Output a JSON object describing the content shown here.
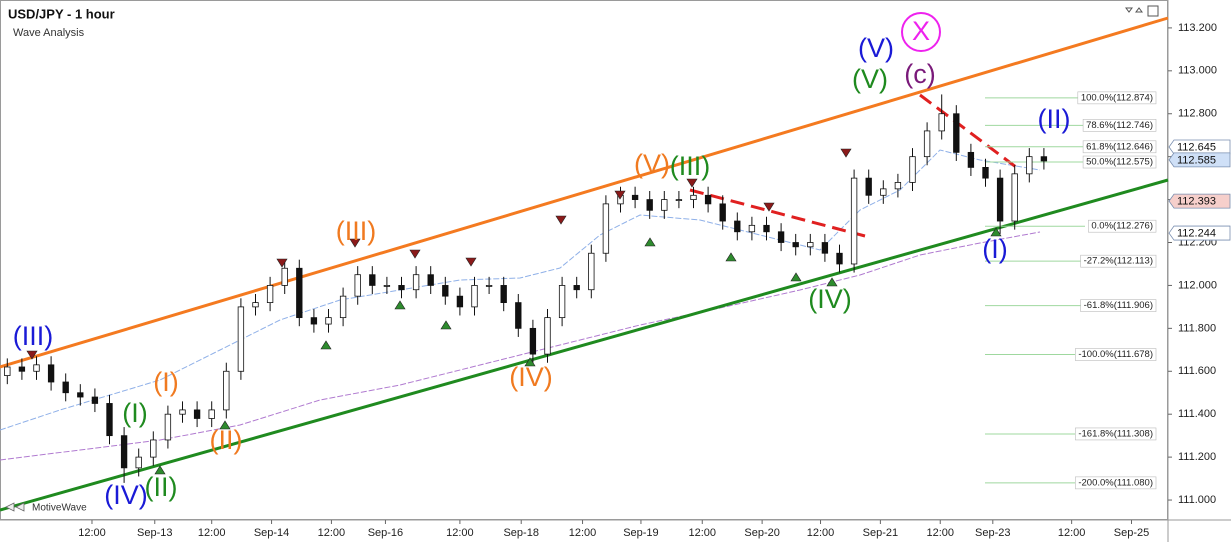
{
  "chart_data": {
    "type": "candlestick",
    "title": "USD/JPY - 1 hour",
    "subtitle": "Wave Analysis",
    "watermark": "MotiveWave",
    "xlim": [
      0,
      80
    ],
    "ylim": [
      110.907,
      113.33
    ],
    "xticks": [
      {
        "value": 6.3,
        "label": "12:00"
      },
      {
        "value": 10.6,
        "label": "Sep-13"
      },
      {
        "value": 14.5,
        "label": "12:00"
      },
      {
        "value": 18.6,
        "label": "Sep-14"
      },
      {
        "value": 22.7,
        "label": "12:00"
      },
      {
        "value": 26.4,
        "label": "Sep-16"
      },
      {
        "value": 31.5,
        "label": "12:00"
      },
      {
        "value": 35.7,
        "label": "Sep-18"
      },
      {
        "value": 39.9,
        "label": "12:00"
      },
      {
        "value": 43.9,
        "label": "Sep-19"
      },
      {
        "value": 48.1,
        "label": "12:00"
      },
      {
        "value": 52.2,
        "label": "Sep-20"
      },
      {
        "value": 56.2,
        "label": "12:00"
      },
      {
        "value": 60.3,
        "label": "Sep-21"
      },
      {
        "value": 64.4,
        "label": "12:00"
      },
      {
        "value": 68.0,
        "label": "Sep-23"
      },
      {
        "value": 73.4,
        "label": "12:00"
      },
      {
        "value": 77.5,
        "label": "Sep-25"
      }
    ],
    "yticks": [
      {
        "value": 113.2,
        "label": "113.200"
      },
      {
        "value": 113.0,
        "label": "113.000"
      },
      {
        "value": 112.8,
        "label": "112.800"
      },
      {
        "value": 112.6,
        "label": "112.600"
      },
      {
        "value": 112.4,
        "label": "112.400"
      },
      {
        "value": 112.2,
        "label": "112.200"
      },
      {
        "value": 112.0,
        "label": "112.000"
      },
      {
        "value": 111.8,
        "label": "111.800"
      },
      {
        "value": 111.6,
        "label": "111.600"
      },
      {
        "value": 111.4,
        "label": "111.400"
      },
      {
        "value": 111.2,
        "label": "111.200"
      },
      {
        "value": 111.0,
        "label": "111.000"
      }
    ],
    "up_color": "#ffffff",
    "down_color": "#111111",
    "open": [
      111.58,
      111.62,
      111.6,
      111.63,
      111.55,
      111.5,
      111.48,
      111.45,
      111.3,
      111.15,
      111.2,
      111.28,
      111.4,
      111.42,
      111.38,
      111.42,
      111.6,
      111.9,
      111.92,
      112.0,
      112.08,
      111.85,
      111.82,
      111.85,
      111.95,
      112.05,
      112.0,
      112.0,
      111.98,
      112.05,
      112.0,
      111.95,
      111.9,
      112.0,
      112.0,
      111.92,
      111.8,
      111.68,
      111.85,
      112.0,
      111.98,
      112.15,
      112.38,
      112.42,
      112.4,
      112.35,
      112.4,
      112.4,
      112.42,
      112.38,
      112.3,
      112.25,
      112.28,
      112.25,
      112.2,
      112.18,
      112.2,
      112.15,
      112.1,
      112.5,
      112.42,
      112.45,
      112.48,
      112.6,
      112.72,
      112.8,
      112.62,
      112.55,
      112.5,
      112.3,
      112.52,
      112.6
    ],
    "high": [
      111.66,
      111.66,
      111.67,
      111.67,
      111.59,
      111.54,
      111.52,
      111.49,
      111.34,
      111.24,
      111.32,
      111.44,
      111.46,
      111.46,
      111.46,
      111.64,
      111.94,
      111.96,
      112.04,
      112.12,
      112.12,
      111.89,
      111.89,
      111.99,
      112.09,
      112.09,
      112.04,
      112.04,
      112.09,
      112.09,
      112.04,
      111.99,
      112.04,
      112.04,
      112.04,
      111.96,
      111.84,
      111.89,
      112.04,
      112.04,
      112.19,
      112.42,
      112.46,
      112.46,
      112.44,
      112.44,
      112.44,
      112.46,
      112.46,
      112.42,
      112.34,
      112.32,
      112.32,
      112.29,
      112.24,
      112.24,
      112.24,
      112.19,
      112.54,
      112.54,
      112.49,
      112.52,
      112.64,
      112.76,
      112.89,
      112.84,
      112.66,
      112.59,
      112.54,
      112.56,
      112.64,
      112.64
    ],
    "low": [
      111.54,
      111.56,
      111.56,
      111.51,
      111.46,
      111.44,
      111.41,
      111.26,
      111.08,
      111.11,
      111.16,
      111.24,
      111.36,
      111.34,
      111.34,
      111.38,
      111.56,
      111.86,
      111.88,
      111.96,
      111.81,
      111.78,
      111.78,
      111.81,
      111.91,
      111.96,
      111.96,
      111.94,
      111.94,
      111.96,
      111.91,
      111.86,
      111.86,
      111.96,
      111.88,
      111.76,
      111.64,
      111.64,
      111.81,
      111.94,
      111.94,
      112.11,
      112.34,
      112.36,
      112.31,
      112.31,
      112.36,
      112.36,
      112.34,
      112.26,
      112.21,
      112.21,
      112.21,
      112.16,
      112.14,
      112.14,
      112.11,
      112.06,
      112.06,
      112.38,
      112.38,
      112.41,
      112.44,
      112.56,
      112.68,
      112.58,
      112.51,
      112.46,
      112.24,
      112.26,
      112.48,
      112.54
    ],
    "close": [
      111.62,
      111.6,
      111.63,
      111.55,
      111.5,
      111.48,
      111.45,
      111.3,
      111.15,
      111.2,
      111.28,
      111.4,
      111.42,
      111.38,
      111.42,
      111.6,
      111.9,
      111.92,
      112.0,
      112.08,
      111.85,
      111.82,
      111.85,
      111.95,
      112.05,
      112.0,
      112.0,
      111.98,
      112.05,
      112.0,
      111.95,
      111.9,
      112.0,
      112.0,
      111.92,
      111.8,
      111.68,
      111.85,
      112.0,
      111.98,
      112.15,
      112.38,
      112.42,
      112.4,
      112.35,
      112.4,
      112.4,
      112.42,
      112.38,
      112.3,
      112.25,
      112.28,
      112.25,
      112.2,
      112.18,
      112.2,
      112.15,
      112.1,
      112.5,
      112.42,
      112.45,
      112.48,
      112.6,
      112.72,
      112.8,
      112.62,
      112.55,
      112.5,
      112.3,
      112.52,
      112.6,
      112.58
    ],
    "fib_levels": [
      {
        "value": 112.874,
        "label": "100.0%(112.874)"
      },
      {
        "value": 112.746,
        "label": "78.6%(112.746)"
      },
      {
        "value": 112.646,
        "label": "61.8%(112.646)"
      },
      {
        "value": 112.575,
        "label": "50.0%(112.575)"
      },
      {
        "value": 112.276,
        "label": "0.0%(112.276)"
      },
      {
        "value": 112.113,
        "label": "-27.2%(112.113)"
      },
      {
        "value": 111.906,
        "label": "-61.8%(111.906)"
      },
      {
        "value": 111.678,
        "label": "-100.0%(111.678)"
      },
      {
        "value": 111.308,
        "label": "-161.8%(111.308)"
      },
      {
        "value": 111.08,
        "label": "-200.0%(111.080)"
      }
    ],
    "price_labels": [
      {
        "value": 112.645,
        "color": "#ffffff"
      },
      {
        "value": 112.585,
        "color": "#cfe0f7"
      },
      {
        "value": 112.393,
        "color": "#f6cfcb"
      },
      {
        "value": 112.244,
        "color": "#ffffff"
      }
    ],
    "annotations": [
      {
        "text": "(III)",
        "color": "#1a1ad6"
      },
      {
        "text": "(IV)",
        "color": "#1a1ad6"
      },
      {
        "text": "(I)",
        "color": "#1f8a1f"
      },
      {
        "text": "(II)",
        "color": "#1f8a1f"
      },
      {
        "text": "(I)",
        "color": "#f07a20"
      },
      {
        "text": "(II)",
        "color": "#f07a20"
      },
      {
        "text": "(III)",
        "color": "#f07a20"
      },
      {
        "text": "(IV)",
        "color": "#f07a20"
      },
      {
        "text": "(V)",
        "color": "#f07a20"
      },
      {
        "text": "(III)",
        "color": "#1f8a1f"
      },
      {
        "text": "(IV)",
        "color": "#1f8a1f"
      },
      {
        "text": "(V)",
        "color": "#1f8a1f"
      },
      {
        "text": "(V)",
        "color": "#1a1ad6"
      },
      {
        "text": "(c)",
        "color": "#7a1a7a"
      },
      {
        "text": "X",
        "color": "#ee22ee"
      },
      {
        "text": "(II)",
        "color": "#1a1ad6"
      },
      {
        "text": "(I)",
        "color": "#1a1ad6"
      }
    ]
  }
}
